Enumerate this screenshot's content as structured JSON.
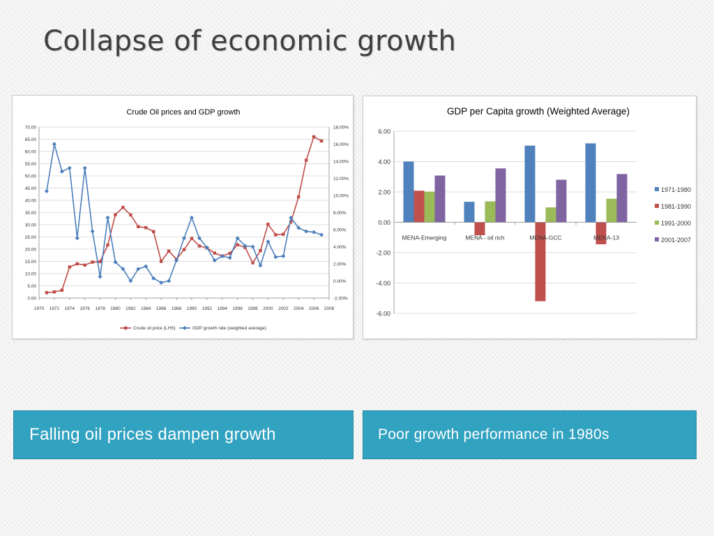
{
  "slide": {
    "title": "Collapse of economic growth",
    "captions": [
      "Falling oil prices dampen growth",
      "Poor growth performance in 1980s"
    ]
  },
  "colors": {
    "background": "#f7f7f7",
    "caption_fill": "#31a2c0",
    "series_red": "#be4b48",
    "series_blue": "#4a7ebb",
    "series_green": "#9bbb59",
    "series_purple": "#8064a2"
  },
  "chart_data": [
    {
      "type": "line",
      "title": "Crude Oil prices and GDP growth",
      "x": [
        1971,
        1972,
        1973,
        1974,
        1975,
        1976,
        1977,
        1978,
        1979,
        1980,
        1981,
        1982,
        1983,
        1984,
        1985,
        1986,
        1987,
        1988,
        1989,
        1990,
        1991,
        1992,
        1993,
        1994,
        1995,
        1996,
        1997,
        1998,
        1999,
        2000,
        2001,
        2002,
        2003,
        2004,
        2005,
        2006,
        2007
      ],
      "x_ticks": [
        "1970",
        "1972",
        "1974",
        "1976",
        "1978",
        "1980",
        "1982",
        "1984",
        "1986",
        "1988",
        "1990",
        "1992",
        "1994",
        "1996",
        "1998",
        "2000",
        "2002",
        "2004",
        "2006",
        "2008"
      ],
      "xlim": [
        1970,
        2008
      ],
      "y_left_ticks": [
        "0.00",
        "5.00",
        "10.00",
        "15.00",
        "20.00",
        "25.00",
        "30.00",
        "35.00",
        "40.00",
        "45.00",
        "50.00",
        "55.00",
        "60.00",
        "65.00",
        "70.00"
      ],
      "ylim_left": [
        0,
        70
      ],
      "y_right_ticks": [
        "-2.00%",
        "0.00%",
        "2.00%",
        "4.00%",
        "6.00%",
        "8.00%",
        "10.00%",
        "12.00%",
        "14.00%",
        "16.00%",
        "18.00%"
      ],
      "ylim_right": [
        -2,
        18
      ],
      "grid": true,
      "legend_position": "bottom",
      "series": [
        {
          "name": "Crude oil price (LHS)",
          "axis": "left",
          "color": "#be4b48",
          "marker": "square",
          "values": [
            2.2,
            2.5,
            3.2,
            12.7,
            14.0,
            13.5,
            14.7,
            14.9,
            21.7,
            34.1,
            37.1,
            34.0,
            29.2,
            28.8,
            27.2,
            15.0,
            19.2,
            15.9,
            19.8,
            24.4,
            21.3,
            20.5,
            18.4,
            17.2,
            18.3,
            21.8,
            20.7,
            14.4,
            19.4,
            30.2,
            25.9,
            26.1,
            31.1,
            41.4,
            56.4,
            66.0,
            64.3
          ]
        },
        {
          "name": "GDP growth rate (weighted average)",
          "axis": "right",
          "color": "#4a7ebb",
          "marker": "diamond",
          "values": [
            10.5,
            16.0,
            12.8,
            13.2,
            5.0,
            13.2,
            5.8,
            0.5,
            7.4,
            2.2,
            1.4,
            0.0,
            1.4,
            1.7,
            0.3,
            -0.2,
            0.0,
            2.4,
            5.0,
            7.4,
            5.0,
            3.9,
            2.4,
            2.9,
            2.7,
            5.0,
            4.1,
            4.0,
            1.8,
            4.6,
            2.8,
            2.9,
            7.4,
            6.2,
            5.8,
            5.7,
            5.4
          ]
        }
      ]
    },
    {
      "type": "bar",
      "title": "GDP per Capita growth (Weighted Average)",
      "categories": [
        "MENA-Emerging",
        "MENA - oil rich",
        "MENA-GCC",
        "MENA-13"
      ],
      "y_ticks": [
        "6.00",
        "4.00",
        "2.00",
        "0.00",
        "-2.00",
        "-4.00",
        "-6.00"
      ],
      "ylim": [
        -6,
        6
      ],
      "grid": true,
      "legend_position": "right",
      "series": [
        {
          "name": "1971-1980",
          "color": "#4f81bd",
          "values": [
            4.0,
            1.35,
            5.05,
            5.2
          ]
        },
        {
          "name": "1981-1990",
          "color": "#c0504d",
          "values": [
            2.08,
            -0.85,
            -5.2,
            -1.45
          ]
        },
        {
          "name": "1991-2000",
          "color": "#9bbb59",
          "values": [
            2.02,
            1.38,
            0.98,
            1.55
          ]
        },
        {
          "name": "2001-2007",
          "color": "#8064a2",
          "values": [
            3.08,
            3.55,
            2.8,
            3.18
          ]
        }
      ]
    }
  ]
}
